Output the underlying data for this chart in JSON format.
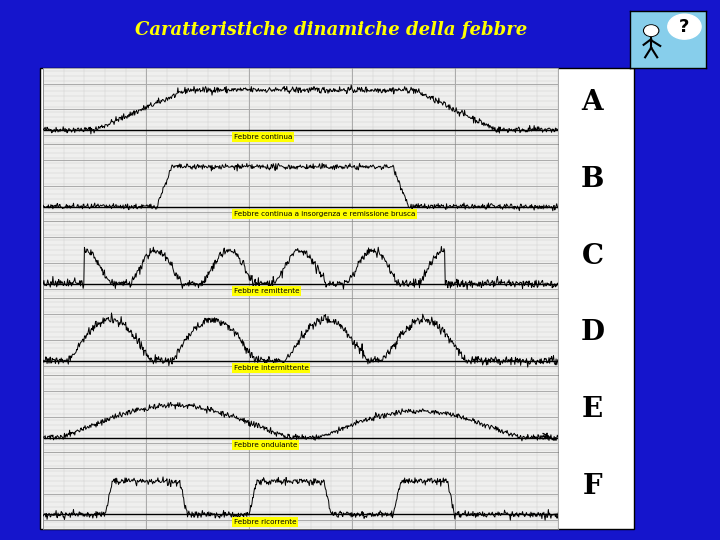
{
  "title": "Caratteristiche dinamiche della febbre",
  "title_color": "#FFFF00",
  "background_color": "#1515CC",
  "panel_bg": "#FFFFFF",
  "grid_color_minor": "#CCCCCC",
  "grid_color_major": "#999999",
  "line_color": "#000000",
  "label_bg": "#FFFF00",
  "label_color": "#000000",
  "labels": [
    "Febbre continua",
    "Febbre continua a insorgenza e remissione brusca",
    "Febbre remittente",
    "Febbre intermittente",
    "Febbre ondulante",
    "Febbre ricorrente"
  ],
  "letter_labels": [
    "A",
    "B",
    "C",
    "D",
    "E",
    "F"
  ],
  "fig_width": 7.2,
  "fig_height": 5.4,
  "dpi": 100
}
